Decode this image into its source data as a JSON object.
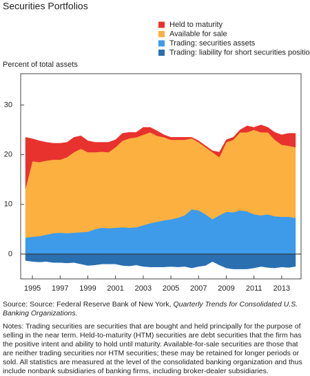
{
  "chart_data": {
    "type": "stacked-area",
    "title": "Securities Portfolios",
    "y_label": "Percent of total assets",
    "x": [
      1994.5,
      1995,
      1995.5,
      1996,
      1996.5,
      1997,
      1997.5,
      1998,
      1998.5,
      1999,
      1999.5,
      2000,
      2000.5,
      2001,
      2001.5,
      2002,
      2002.5,
      2003,
      2003.5,
      2004,
      2004.5,
      2005,
      2005.5,
      2006,
      2006.5,
      2007,
      2007.5,
      2008,
      2008.5,
      2009,
      2009.5,
      2010,
      2010.5,
      2011,
      2011.5,
      2012,
      2012.5,
      2013,
      2013.5,
      2014
    ],
    "series": [
      {
        "name": "Held to maturity",
        "color": "#e8322e",
        "values": [
          10.3,
          4.5,
          4.3,
          3.7,
          3.3,
          3.3,
          3.0,
          3.0,
          2.6,
          2.3,
          2.0,
          1.9,
          2.0,
          1.5,
          1.5,
          1.2,
          1.0,
          1.5,
          1.0,
          1.0,
          0.5,
          0.5,
          0.5,
          0.5,
          0.2,
          0.3,
          0.3,
          0.3,
          1.0,
          0.5,
          0.5,
          0.5,
          1.3,
          0.5,
          1.5,
          1.0,
          1.5,
          2.0,
          2.5,
          2.8
        ]
      },
      {
        "name": "Available for sale",
        "color": "#fbb040",
        "values": [
          9.9,
          15.2,
          14.9,
          14.9,
          14.8,
          14.7,
          15.3,
          16.2,
          16.8,
          16.0,
          15.5,
          15.3,
          15.3,
          16.2,
          17.4,
          18.0,
          18.1,
          18.2,
          18.3,
          17.3,
          16.7,
          16.0,
          15.7,
          15.2,
          14.3,
          13.7,
          13.5,
          13.5,
          11.7,
          14.0,
          14.6,
          15.7,
          15.9,
          17.0,
          16.7,
          16.5,
          15.4,
          14.5,
          14.3,
          14.2
        ]
      },
      {
        "name": "Trading: securities assets",
        "color": "#3d9be9",
        "values": [
          3.3,
          3.5,
          3.6,
          3.9,
          4.2,
          4.3,
          4.2,
          4.3,
          4.4,
          4.5,
          5.0,
          5.3,
          5.2,
          5.3,
          5.4,
          5.3,
          5.4,
          5.8,
          6.2,
          6.5,
          6.8,
          7.0,
          7.3,
          7.8,
          9.0,
          8.8,
          8.0,
          7.0,
          7.8,
          8.5,
          8.4,
          8.8,
          8.6,
          8.0,
          7.8,
          8.0,
          7.6,
          7.5,
          7.5,
          7.3
        ]
      },
      {
        "name": "Trading: liability for short securities positions",
        "color": "#2a6fb0",
        "values": [
          -1.3,
          -1.5,
          -1.6,
          -1.5,
          -1.7,
          -1.7,
          -1.8,
          -1.7,
          -2.0,
          -2.3,
          -2.2,
          -2.0,
          -2.0,
          -2.0,
          -2.3,
          -2.4,
          -2.2,
          -2.5,
          -2.6,
          -2.6,
          -2.6,
          -2.5,
          -2.6,
          -2.5,
          -2.8,
          -2.5,
          -2.3,
          -1.5,
          -2.2,
          -2.8,
          -3.0,
          -3.0,
          -3.0,
          -2.8,
          -2.5,
          -2.7,
          -2.8,
          -2.6,
          -2.7,
          -2.5
        ]
      }
    ],
    "xlim": [
      1994.15,
      2014.4
    ],
    "xticks": [
      1995,
      1997,
      1999,
      2001,
      2003,
      2005,
      2007,
      2009,
      2011,
      2013
    ],
    "ylim": [
      -5,
      36.3
    ],
    "yticks": [
      0,
      10,
      20,
      30
    ],
    "source": "Source: Source: Federal Reserve Bank of New York,",
    "source_publication": "Quarterly Trends for Consolidated U.S. Banking Organizations.",
    "notes": "Notes: Trading securities are securities that are bought and held principally for the purpose of selling in the near term. Held-to-maturity (HTM) securities are debt securities that the firm has the positive intent and ability to hold until maturity. Available-for-sale securities are those that are neither trading securities nor HTM securities; these may be retained for longer periods or sold. All statistics are measured at the level of the consolidated banking organization and thus include nonbank subsidiaries of banking firms, including broker-dealer subsidiaries."
  }
}
